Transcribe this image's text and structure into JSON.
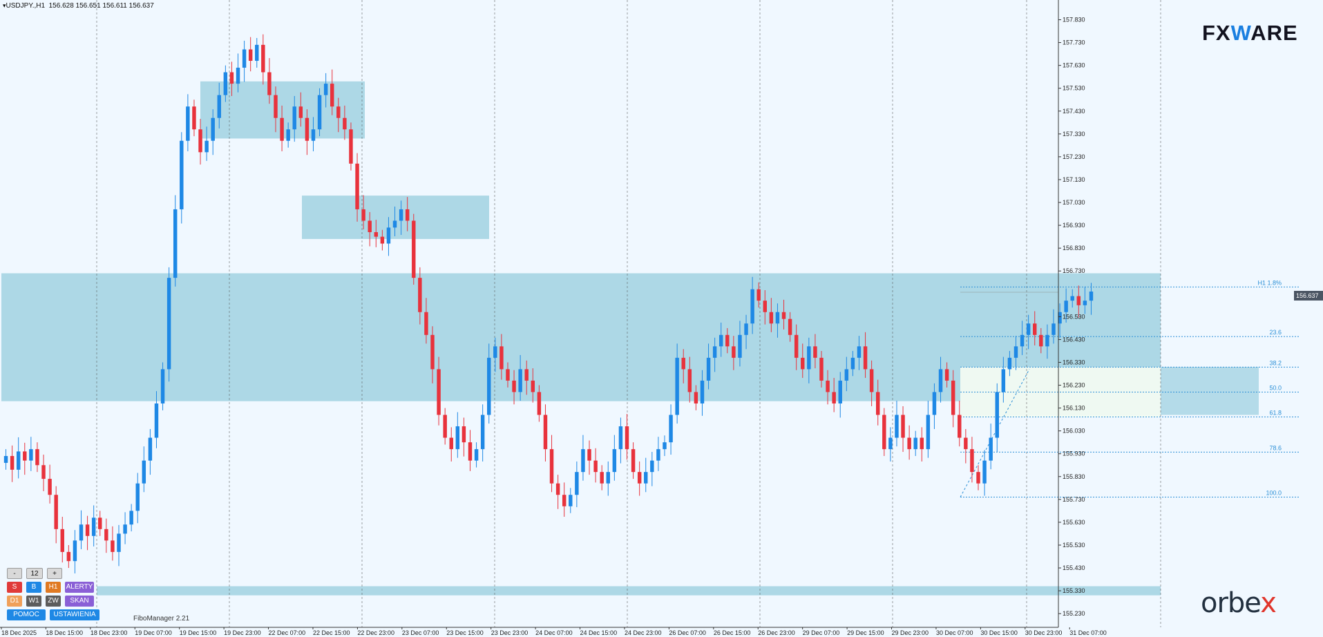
{
  "header": {
    "symbol": "USDJPY.,H1",
    "ohlc": "156.628 156.651 156.611 156.637"
  },
  "price_axis": {
    "labels": [
      "157.830",
      "157.730",
      "157.630",
      "157.530",
      "157.430",
      "157.330",
      "157.230",
      "157.130",
      "157.030",
      "156.930",
      "156.830",
      "156.730",
      "156.530",
      "156.430",
      "156.330",
      "156.230",
      "156.130",
      "156.030",
      "155.930",
      "155.830",
      "155.730",
      "155.630",
      "155.530",
      "155.430",
      "155.330",
      "155.230"
    ],
    "current_price": "156.637"
  },
  "time_axis": {
    "labels": [
      "18 Dec 2025",
      "18 Dec 15:00",
      "18 Dec 23:00",
      "19 Dec 07:00",
      "19 Dec 15:00",
      "19 Dec 23:00",
      "22 Dec 07:00",
      "22 Dec 15:00",
      "22 Dec 23:00",
      "23 Dec 07:00",
      "23 Dec 15:00",
      "23 Dec 23:00",
      "24 Dec 07:00",
      "24 Dec 15:00",
      "24 Dec 23:00",
      "26 Dec 07:00",
      "26 Dec 15:00",
      "26 Dec 23:00",
      "29 Dec 07:00",
      "29 Dec 15:00",
      "29 Dec 23:00",
      "30 Dec 07:00",
      "30 Dec 15:00",
      "30 Dec 23:00",
      "31 Dec 07:00"
    ]
  },
  "fibo_labels": {
    "h1": "H1 1.8%",
    "f23": "23.6",
    "f38": "38.2",
    "f50": "50.0",
    "f61": "61.8",
    "f78": "78.6",
    "f100": "100.0"
  },
  "indicator_label": "FiboManager 2.21",
  "logos": {
    "fxware_pre": "FX",
    "fxware_w": "W",
    "fxware_post": "ARE",
    "orbex_pre": "orbe",
    "orbex_x": "x"
  },
  "panel": {
    "minus": "-",
    "count": "12",
    "plus": "+",
    "sell": "S",
    "buy": "B",
    "h1": "H1",
    "alerty": "ALERTY",
    "d1": "D1",
    "w1": "W1",
    "zw": "ZW",
    "skan": "SKAN",
    "pomoc": "POMOC",
    "ustawienia": "USTAWIENIA"
  },
  "colors": {
    "bull": "#1e88e5",
    "bear": "#e8323c",
    "zone": "#a9d6e5",
    "fibo": "#2b8fd6",
    "background": "#f0f8ff"
  },
  "chart_data": {
    "type": "candlestick",
    "symbol": "USDJPY",
    "timeframe": "H1",
    "price_range": [
      155.17,
      157.88
    ],
    "zones": [
      {
        "from": 157.31,
        "to": 157.56
      },
      {
        "from": 156.87,
        "to": 157.06
      },
      {
        "from": 156.16,
        "to": 156.72
      },
      {
        "from": 155.31,
        "to": 155.35
      },
      {
        "from": 156.1,
        "to": 156.31
      }
    ],
    "fibonacci": {
      "high": 156.66,
      "low": 155.74,
      "levels": [
        {
          "label": "23.6",
          "price": 156.443
        },
        {
          "label": "38.2",
          "price": 156.309
        },
        {
          "label": "50.0",
          "price": 156.2
        },
        {
          "label": "61.8",
          "price": 156.091
        },
        {
          "label": "78.6",
          "price": 155.937
        },
        {
          "label": "100.0",
          "price": 155.74
        }
      ]
    },
    "closes": [
      155.92,
      155.86,
      155.94,
      155.9,
      155.95,
      155.88,
      155.82,
      155.75,
      155.6,
      155.5,
      155.46,
      155.55,
      155.62,
      155.57,
      155.65,
      155.6,
      155.55,
      155.5,
      155.58,
      155.62,
      155.68,
      155.8,
      155.9,
      156.0,
      156.15,
      156.3,
      156.7,
      157.0,
      157.3,
      157.45,
      157.35,
      157.25,
      157.3,
      157.4,
      157.5,
      157.6,
      157.55,
      157.62,
      157.7,
      157.65,
      157.72,
      157.6,
      157.5,
      157.4,
      157.3,
      157.35,
      157.45,
      157.4,
      157.3,
      157.35,
      157.5,
      157.55,
      157.45,
      157.4,
      157.35,
      157.2,
      157.0,
      156.95,
      156.9,
      156.88,
      156.85,
      156.92,
      156.95,
      157.0,
      156.95,
      156.7,
      156.55,
      156.45,
      156.3,
      156.1,
      156.0,
      155.95,
      156.05,
      155.98,
      155.9,
      155.95,
      156.1,
      156.35,
      156.4,
      156.3,
      156.25,
      156.2,
      156.3,
      156.25,
      156.2,
      156.1,
      155.95,
      155.8,
      155.75,
      155.7,
      155.75,
      155.85,
      155.95,
      155.9,
      155.85,
      155.8,
      155.85,
      155.95,
      156.05,
      155.95,
      155.85,
      155.8,
      155.85,
      155.9,
      155.95,
      155.98,
      156.1,
      156.35,
      156.3,
      156.2,
      156.15,
      156.25,
      156.35,
      156.4,
      156.45,
      156.4,
      156.35,
      156.45,
      156.5,
      156.65,
      156.6,
      156.55,
      156.5,
      156.55,
      156.52,
      156.45,
      156.35,
      156.3,
      156.4,
      156.35,
      156.25,
      156.2,
      156.15,
      156.25,
      156.3,
      156.35,
      156.4,
      156.3,
      156.2,
      156.1,
      155.95,
      156.0,
      156.1,
      156.0,
      155.95,
      156.0,
      155.95,
      156.1,
      156.2,
      156.3,
      156.25,
      156.1,
      156.0,
      155.95,
      155.85,
      155.8,
      155.9,
      156.0,
      156.2,
      156.3,
      156.35,
      156.4,
      156.45,
      156.5,
      156.45,
      156.4,
      156.45,
      156.5,
      156.55,
      156.6,
      156.62,
      156.58,
      156.6,
      156.64
    ]
  }
}
